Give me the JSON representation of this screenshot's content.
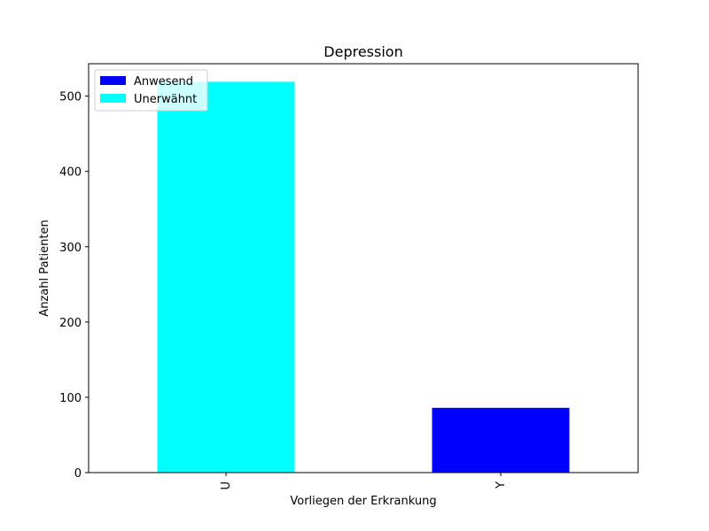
{
  "chart_data": {
    "type": "bar",
    "title": "Depression",
    "xlabel": "Vorliegen der Erkrankung",
    "ylabel": "Anzahl Patienten",
    "categories": [
      "U",
      "Y"
    ],
    "values": [
      519,
      86
    ],
    "bar_colors": [
      "#00ffff",
      "#0000ff"
    ],
    "ylim": [
      0,
      543
    ],
    "yticks": [
      0,
      100,
      200,
      300,
      400,
      500
    ],
    "grid": false,
    "legend": {
      "position": "top-left",
      "entries": [
        {
          "label": "Anwesend",
          "color": "#0000ff"
        },
        {
          "label": "Unerwähnt",
          "color": "#00ffff"
        }
      ]
    }
  }
}
